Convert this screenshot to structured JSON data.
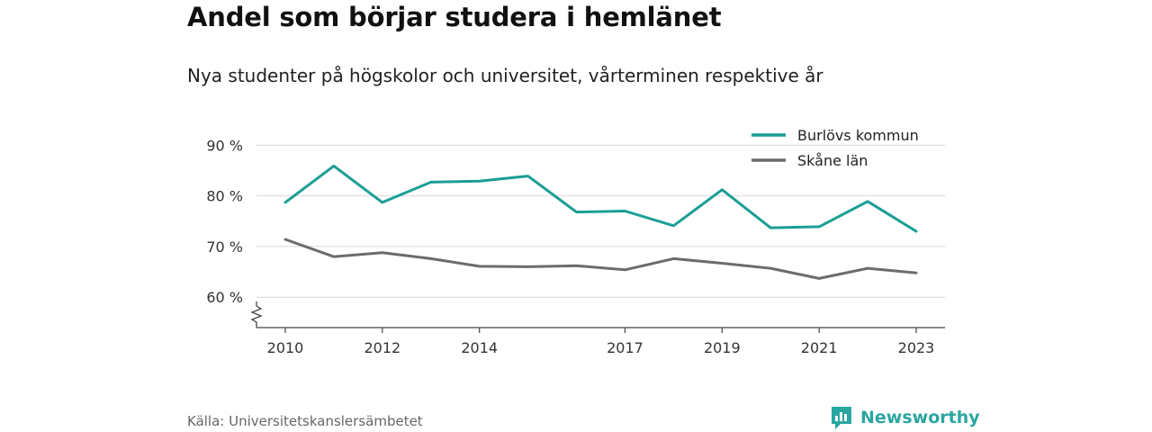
{
  "title": "Andel som börjar studera i hemlänet",
  "subtitle": "Nya studenter på högskolor och universitet, vårterminen respektive år",
  "source": "Källa: Universitetskanslersämbetet",
  "brand": {
    "name": "Newsworthy",
    "icon": "newsworthy-logo-icon",
    "color": "#2aa6a0"
  },
  "chart_data": {
    "type": "line",
    "x": [
      2010,
      2011,
      2012,
      2013,
      2014,
      2015,
      2016,
      2017,
      2018,
      2019,
      2020,
      2021,
      2022,
      2023
    ],
    "x_tick_labels": [
      "2010",
      "2012",
      "2014",
      "2017",
      "2019",
      "2021",
      "2023"
    ],
    "series": [
      {
        "name": "Burlövs kommun",
        "color": "#1a9e96",
        "values": [
          78.7,
          85.9,
          78.7,
          82.7,
          82.9,
          83.9,
          76.8,
          77.0,
          74.1,
          81.2,
          73.7,
          73.9,
          78.9,
          73.0
        ]
      },
      {
        "name": "Skåne län",
        "color": "#6b6b70",
        "values": [
          71.4,
          68.0,
          68.8,
          67.6,
          66.1,
          66.0,
          66.2,
          65.4,
          67.6,
          66.7,
          65.7,
          63.7,
          65.7,
          64.8
        ]
      }
    ],
    "y_ticks": [
      60,
      70,
      80,
      90
    ],
    "y_tick_labels": [
      "60 %",
      "70 %",
      "80 %",
      "90 %"
    ],
    "ylim": [
      54,
      92
    ],
    "xlabel": "",
    "ylabel": "",
    "grid": true,
    "axis_break": true,
    "legend_position": "top-right"
  }
}
